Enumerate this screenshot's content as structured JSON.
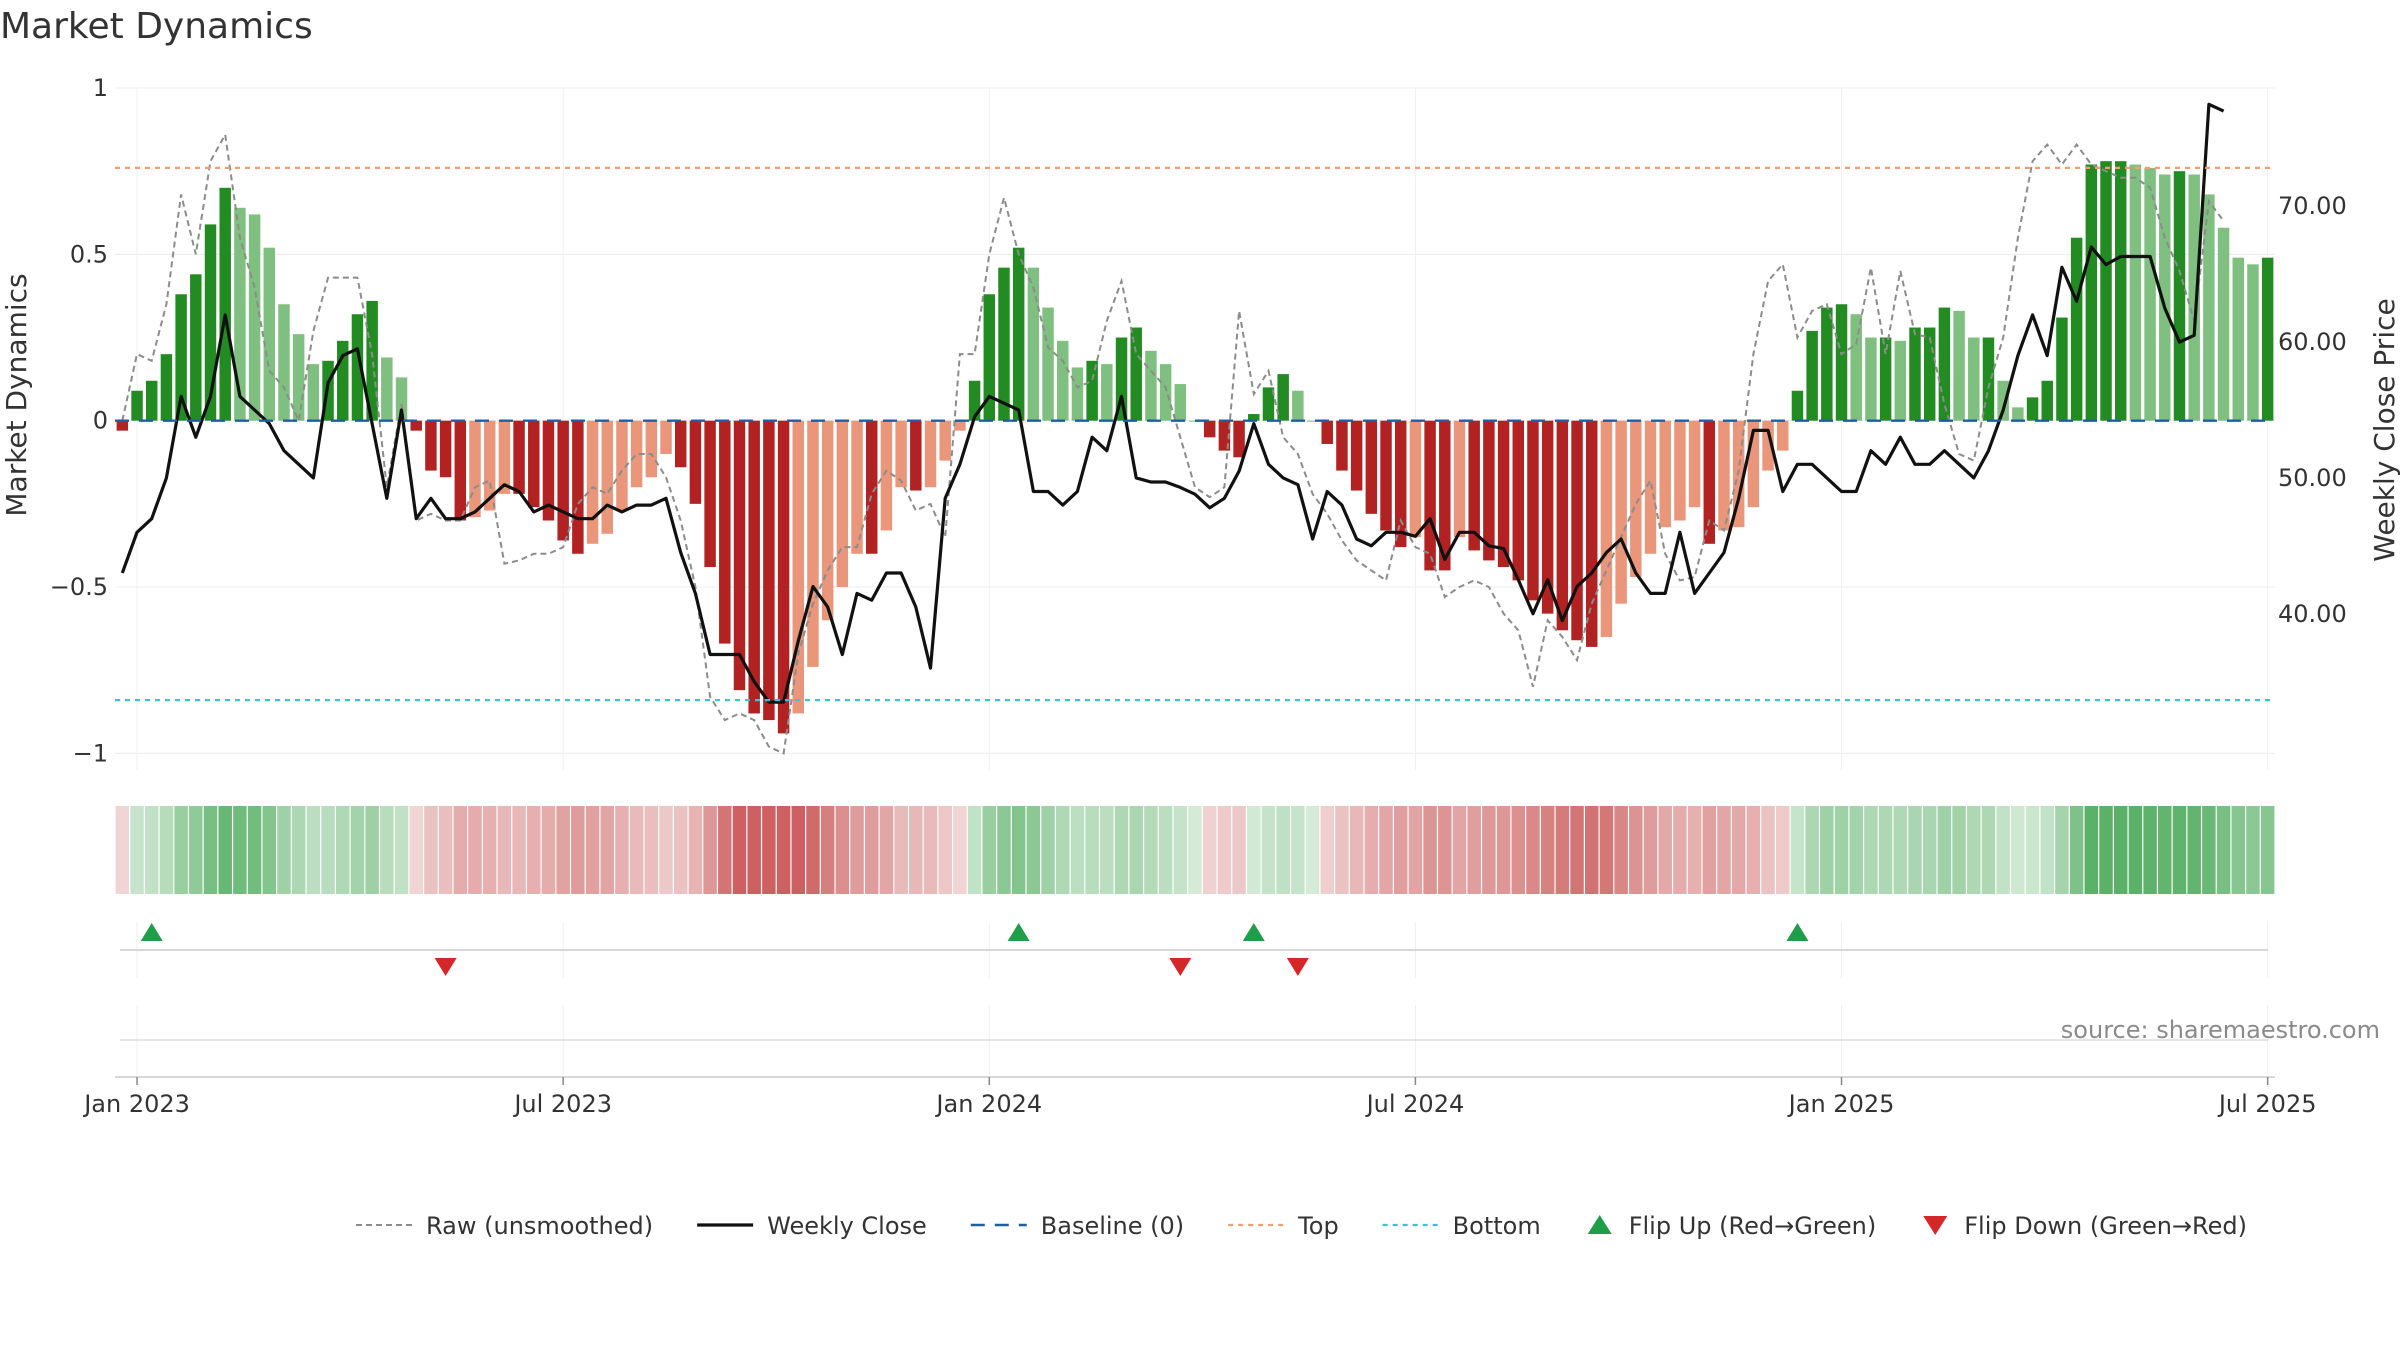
{
  "chart_data": {
    "type": "bar",
    "title": "Market Dynamics",
    "ylabel_left": "Market Dynamics",
    "ylabel_right": "Weekly Close Price",
    "ylim_left": [
      -1.05,
      1.0
    ],
    "ylim_right": [
      28.5,
      78.7
    ],
    "left_ticks": [
      {
        "value": 1,
        "label": "1"
      },
      {
        "value": 0.5,
        "label": "0.5"
      },
      {
        "value": 0,
        "label": "0"
      },
      {
        "value": -0.5,
        "label": "−0.5"
      },
      {
        "value": -1,
        "label": "−1"
      }
    ],
    "right_ticks": [
      {
        "value": 70,
        "label": "70.00"
      },
      {
        "value": 60,
        "label": "60.00"
      },
      {
        "value": 50,
        "label": "50.00"
      },
      {
        "value": 40,
        "label": "40.00"
      }
    ],
    "x_ticks": [
      {
        "week": 1,
        "label": "Jan 2023"
      },
      {
        "week": 30,
        "label": "Jul 2023"
      },
      {
        "week": 59,
        "label": "Jan 2024"
      },
      {
        "week": 88,
        "label": "Jul 2024"
      },
      {
        "week": 117,
        "label": "Jan 2025"
      },
      {
        "week": 146,
        "label": "Jul 2025"
      }
    ],
    "grid": true,
    "top_line": 0.76,
    "bottom_line": -0.84,
    "baseline": 0,
    "values": [
      -0.03,
      0.09,
      0.12,
      0.2,
      0.38,
      0.44,
      0.59,
      0.7,
      0.64,
      0.62,
      0.52,
      0.35,
      0.26,
      0.17,
      0.18,
      0.24,
      0.32,
      0.36,
      0.19,
      0.13,
      -0.03,
      -0.15,
      -0.17,
      -0.3,
      -0.29,
      -0.27,
      -0.22,
      -0.22,
      -0.26,
      -0.3,
      -0.36,
      -0.4,
      -0.37,
      -0.34,
      -0.27,
      -0.2,
      -0.17,
      -0.1,
      -0.14,
      -0.25,
      -0.44,
      -0.67,
      -0.81,
      -0.88,
      -0.9,
      -0.94,
      -0.88,
      -0.74,
      -0.6,
      -0.5,
      -0.4,
      -0.4,
      -0.33,
      -0.2,
      -0.21,
      -0.2,
      -0.12,
      -0.03,
      0.12,
      0.38,
      0.46,
      0.52,
      0.46,
      0.34,
      0.24,
      0.16,
      0.18,
      0.17,
      0.25,
      0.28,
      0.21,
      0.17,
      0.11,
      0.0,
      -0.05,
      -0.09,
      -0.11,
      0.02,
      0.1,
      0.14,
      0.09,
      0.0,
      -0.07,
      -0.15,
      -0.21,
      -0.28,
      -0.33,
      -0.38,
      -0.35,
      -0.45,
      -0.45,
      -0.35,
      -0.39,
      -0.42,
      -0.44,
      -0.48,
      -0.54,
      -0.58,
      -0.63,
      -0.66,
      -0.68,
      -0.65,
      -0.55,
      -0.47,
      -0.4,
      -0.32,
      -0.3,
      -0.26,
      -0.37,
      -0.33,
      -0.32,
      -0.26,
      -0.15,
      -0.09,
      0.09,
      0.27,
      0.34,
      0.35,
      0.32,
      0.25,
      0.25,
      0.24,
      0.28,
      0.28,
      0.34,
      0.33,
      0.25,
      0.25,
      0.12,
      0.04,
      0.07,
      0.12,
      0.31,
      0.55,
      0.77,
      0.78,
      0.78,
      0.77,
      0.76,
      0.74,
      0.75,
      0.74,
      0.68,
      0.58,
      0.49,
      0.47,
      0.49
    ],
    "raw": [
      0.0,
      0.2,
      0.18,
      0.35,
      0.68,
      0.5,
      0.78,
      0.86,
      0.55,
      0.4,
      0.15,
      0.1,
      0.0,
      0.27,
      0.43,
      0.43,
      0.43,
      0.2,
      -0.2,
      0.05,
      -0.3,
      -0.28,
      -0.3,
      -0.3,
      -0.2,
      -0.18,
      -0.43,
      -0.42,
      -0.4,
      -0.4,
      -0.38,
      -0.25,
      -0.2,
      -0.22,
      -0.15,
      -0.1,
      -0.1,
      -0.17,
      -0.3,
      -0.5,
      -0.83,
      -0.9,
      -0.88,
      -0.9,
      -0.98,
      -1.0,
      -0.7,
      -0.55,
      -0.45,
      -0.38,
      -0.38,
      -0.22,
      -0.15,
      -0.18,
      -0.27,
      -0.25,
      -0.35,
      0.2,
      0.2,
      0.5,
      0.67,
      0.5,
      0.4,
      0.22,
      0.18,
      0.1,
      0.12,
      0.3,
      0.42,
      0.2,
      0.15,
      0.1,
      -0.05,
      -0.2,
      -0.23,
      -0.2,
      0.33,
      0.08,
      0.15,
      -0.05,
      -0.1,
      -0.22,
      -0.28,
      -0.36,
      -0.42,
      -0.45,
      -0.48,
      -0.3,
      -0.38,
      -0.4,
      -0.53,
      -0.5,
      -0.48,
      -0.5,
      -0.58,
      -0.63,
      -0.8,
      -0.6,
      -0.65,
      -0.72,
      -0.55,
      -0.45,
      -0.35,
      -0.25,
      -0.18,
      -0.4,
      -0.48,
      -0.47,
      -0.3,
      -0.33,
      -0.15,
      0.2,
      0.42,
      0.47,
      0.25,
      0.33,
      0.35,
      0.2,
      0.23,
      0.46,
      0.2,
      0.45,
      0.26,
      0.25,
      0.05,
      -0.1,
      -0.12,
      0.1,
      0.25,
      0.55,
      0.78,
      0.83,
      0.77,
      0.83,
      0.77,
      0.75,
      0.73,
      0.73,
      0.7,
      0.55,
      0.45,
      0.3,
      0.66,
      0.6
    ],
    "series": [
      {
        "name": "Weekly Close",
        "values": [
          43,
          46,
          47,
          50,
          56,
          53,
          56,
          62,
          56,
          55,
          54,
          52,
          51,
          50,
          57,
          59,
          59.5,
          54,
          48.5,
          55,
          47,
          48.5,
          47,
          47,
          47.5,
          48.5,
          49.5,
          49,
          47.5,
          48,
          47.5,
          47,
          47,
          48,
          47.5,
          48,
          48,
          48.5,
          44.5,
          41.5,
          37,
          37,
          37,
          35,
          33.5,
          33.5,
          38,
          42,
          40.5,
          37,
          41.5,
          41,
          43,
          43,
          40.5,
          36,
          48.5,
          51,
          54.5,
          56,
          55.5,
          55,
          49,
          49,
          48,
          49,
          53,
          52,
          56,
          50,
          49.7,
          49.7,
          49.3,
          48.8,
          47.8,
          48.5,
          50.5,
          54,
          51,
          50,
          49.5,
          45.5,
          49,
          48,
          45.5,
          45,
          46,
          46,
          45.7,
          47,
          44,
          46,
          46,
          45,
          44.8,
          42.5,
          40,
          42.5,
          39.5,
          42,
          43,
          44.5,
          45.5,
          43,
          41.5,
          41.5,
          46,
          41.5,
          43,
          44.5,
          48.5,
          53.5,
          53.5,
          49,
          51,
          51,
          50,
          49,
          49,
          52,
          51,
          53,
          51,
          51,
          52,
          51,
          50,
          52,
          55,
          59,
          62,
          59,
          65.5,
          63,
          67,
          65.7,
          66.3,
          66.3,
          66.3,
          62.5,
          60,
          60.5,
          77.5,
          77
        ]
      },
      {
        "name": "Raw (unsmoothed)"
      },
      {
        "name": "Baseline (0)"
      },
      {
        "name": "Top"
      },
      {
        "name": "Bottom"
      }
    ],
    "flip_up_weeks": [
      2,
      61,
      77,
      114
    ],
    "flip_down_weeks": [
      22,
      72,
      80
    ],
    "legend": [
      {
        "key": "raw",
        "label": "Raw (unsmoothed)"
      },
      {
        "key": "close",
        "label": "Weekly Close"
      },
      {
        "key": "baseline",
        "label": "Baseline (0)"
      },
      {
        "key": "top",
        "label": "Top"
      },
      {
        "key": "bottom",
        "label": "Bottom"
      },
      {
        "key": "flipup",
        "label": "Flip Up (Red→Green)"
      },
      {
        "key": "flipdown",
        "label": "Flip Down (Green→Red)"
      }
    ],
    "legend_position": "bottom",
    "source": "source: sharemaestro.com",
    "colors": {
      "green_strong": "#228b22",
      "green_light": "#7fbf7f",
      "red_strong": "#b22222",
      "red_light": "#e9967a",
      "close": "#111111",
      "raw": "#8c8c8c",
      "baseline": "#1f5fa0",
      "top": "#f0a070",
      "bottom": "#40c0d0",
      "flip_up": "#1f9e4a",
      "flip_down": "#d62728"
    }
  }
}
